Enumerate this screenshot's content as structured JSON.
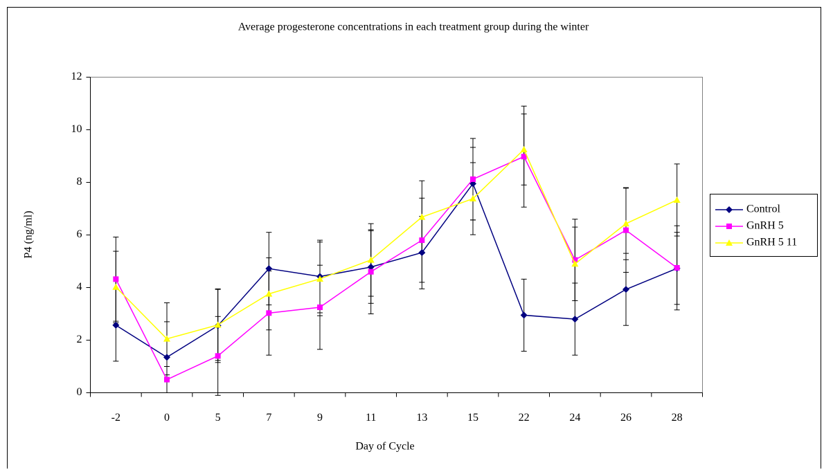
{
  "chart_data": {
    "type": "line",
    "title": "Average progesterone concentrations in each treatment group during the winter",
    "x_label": "Day of Cycle",
    "y_label": "P4 (ng/ml)",
    "categories": [
      "-2",
      "0",
      "5",
      "7",
      "9",
      "11",
      "13",
      "15",
      "22",
      "24",
      "26",
      "28"
    ],
    "ylim": [
      0,
      12
    ],
    "yticks": [
      0,
      2,
      4,
      6,
      8,
      10,
      12
    ],
    "grid": false,
    "legend": "right",
    "series": [
      {
        "name": "Control",
        "color": "#000080",
        "marker": "diamond",
        "values": [
          2.57,
          1.35,
          2.55,
          4.72,
          4.42,
          4.78,
          5.33,
          7.95,
          2.95,
          2.8,
          3.93,
          4.73
        ],
        "errors": [
          1.37,
          1.35,
          1.4,
          1.38,
          1.38,
          1.38,
          1.38,
          1.38,
          1.37,
          1.37,
          1.37,
          1.37
        ]
      },
      {
        "name": "GnRH 5",
        "color": "#ff00ff",
        "marker": "square",
        "values": [
          4.32,
          0.5,
          1.4,
          3.03,
          3.25,
          4.6,
          5.8,
          8.12,
          8.98,
          5.05,
          6.18,
          4.75
        ],
        "errors": [
          1.6,
          0.5,
          1.5,
          1.6,
          1.6,
          1.6,
          1.6,
          1.55,
          1.92,
          1.55,
          1.6,
          1.6
        ]
      },
      {
        "name": "GnRH 5 11",
        "color": "#ffff00",
        "marker": "triangle",
        "values": [
          4.02,
          2.05,
          2.58,
          3.76,
          4.33,
          5.05,
          6.68,
          7.38,
          9.25,
          4.9,
          6.43,
          7.33
        ],
        "errors": [
          1.36,
          1.37,
          1.35,
          1.37,
          1.4,
          1.38,
          1.38,
          1.37,
          1.35,
          1.4,
          1.37,
          1.37
        ]
      }
    ]
  }
}
